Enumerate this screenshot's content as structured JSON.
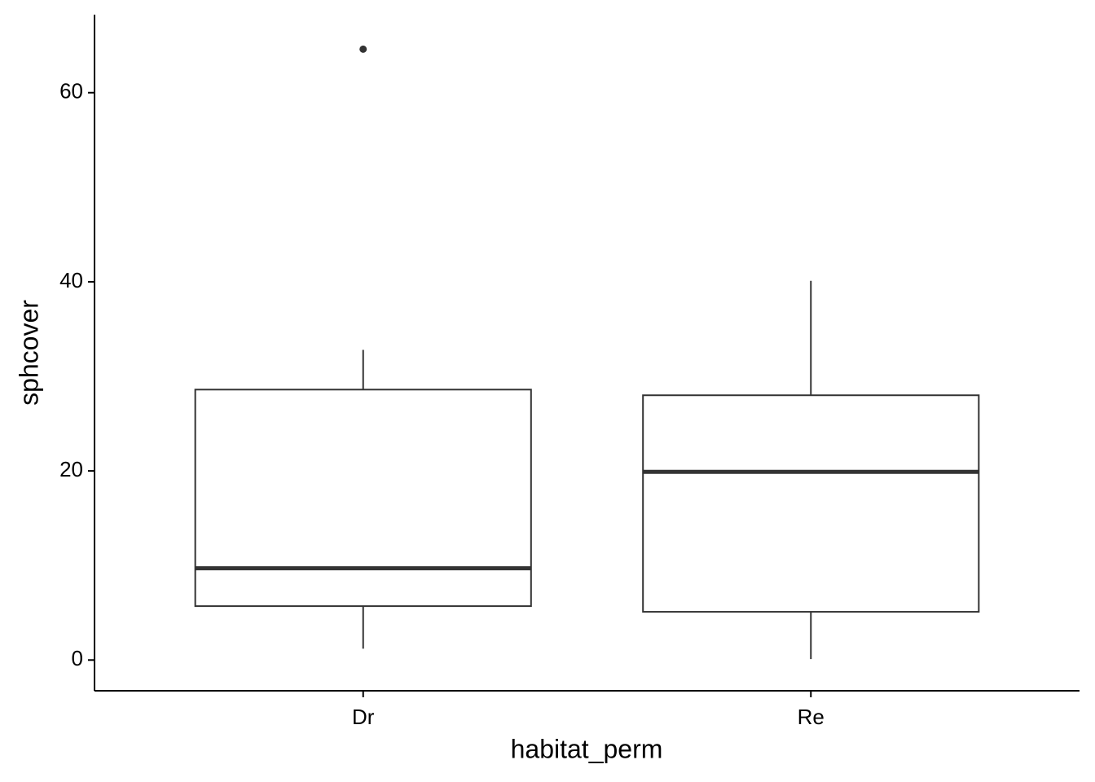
{
  "chart_data": {
    "type": "box",
    "x_label": "habitat_perm",
    "y_label": "sphcover",
    "categories": [
      "Dr",
      "Re"
    ],
    "min": [
      1.2,
      0.1
    ],
    "q1": [
      5.7,
      5.1
    ],
    "median": [
      9.7,
      19.9
    ],
    "q3": [
      28.6,
      28.0
    ],
    "max": [
      32.8,
      40.1
    ],
    "outliers": [
      [
        64.6
      ],
      []
    ],
    "color": "#333333",
    "ylim": [
      -3.25,
      68.25
    ],
    "yticks": [
      0,
      20,
      40,
      60
    ],
    "grid": false
  }
}
